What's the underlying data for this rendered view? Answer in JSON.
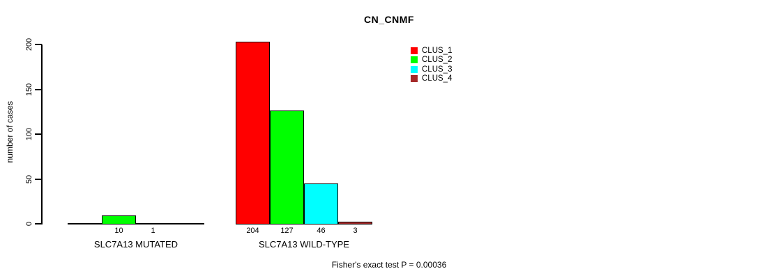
{
  "chart_data": {
    "type": "bar",
    "title": "CN_CNMF",
    "ylabel": "number of cases",
    "xlabel": "",
    "ylim": [
      0,
      200
    ],
    "yticks": [
      0,
      50,
      100,
      150,
      200
    ],
    "grid": false,
    "legend_position": "top-right",
    "legend": [
      {
        "label": "CLUS_1",
        "color": "#FF0000"
      },
      {
        "label": "CLUS_2",
        "color": "#00FF00"
      },
      {
        "label": "CLUS_3",
        "color": "#00FFFF"
      },
      {
        "label": "CLUS_4",
        "color": "#A52A2A"
      }
    ],
    "series": [
      {
        "name": "CLUS_1",
        "color": "#FF0000",
        "values": [
          0,
          204
        ]
      },
      {
        "name": "CLUS_2",
        "color": "#00FF00",
        "values": [
          10,
          127
        ]
      },
      {
        "name": "CLUS_3",
        "color": "#00FFFF",
        "values": [
          1,
          46
        ]
      },
      {
        "name": "CLUS_4",
        "color": "#A52A2A",
        "values": [
          0,
          3
        ]
      }
    ],
    "groups": [
      {
        "label": "SLC7A13 MUTATED",
        "values": [
          0,
          10,
          1,
          0
        ],
        "value_labels": [
          "",
          "10",
          "1",
          ""
        ]
      },
      {
        "label": "SLC7A13 WILD-TYPE",
        "values": [
          204,
          127,
          46,
          3
        ],
        "value_labels": [
          "204",
          "127",
          "46",
          "3"
        ]
      }
    ],
    "annotation": "Fisher's exact test P = 0.00036"
  },
  "colors": {
    "background": "#FFFFFF",
    "axis": "#000000",
    "text": "#000000"
  }
}
